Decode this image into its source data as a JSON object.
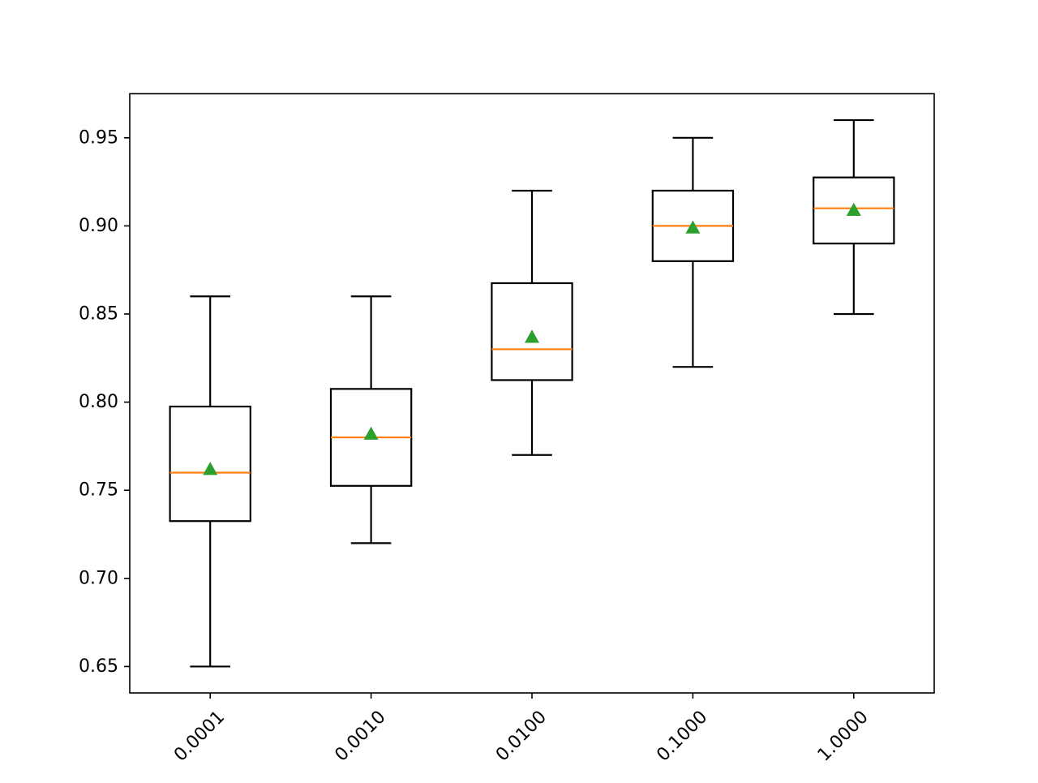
{
  "chart_data": {
    "type": "box",
    "title": "",
    "xlabel": "",
    "ylabel": "",
    "categories": [
      "0.0001",
      "0.0010",
      "0.0100",
      "0.1000",
      "1.0000"
    ],
    "boxes": [
      {
        "category": "0.0001",
        "whisker_low": 0.65,
        "q1": 0.7325,
        "median": 0.76,
        "q3": 0.7975,
        "whisker_high": 0.86,
        "mean": 0.762
      },
      {
        "category": "0.0010",
        "whisker_low": 0.72,
        "q1": 0.7525,
        "median": 0.78,
        "q3": 0.8075,
        "whisker_high": 0.86,
        "mean": 0.782
      },
      {
        "category": "0.0100",
        "whisker_low": 0.77,
        "q1": 0.8125,
        "median": 0.83,
        "q3": 0.8675,
        "whisker_high": 0.92,
        "mean": 0.837
      },
      {
        "category": "0.1000",
        "whisker_low": 0.82,
        "q1": 0.88,
        "median": 0.9,
        "q3": 0.92,
        "whisker_high": 0.95,
        "mean": 0.899
      },
      {
        "category": "1.0000",
        "whisker_low": 0.85,
        "q1": 0.89,
        "median": 0.91,
        "q3": 0.9275,
        "whisker_high": 0.96,
        "mean": 0.909
      }
    ],
    "y_ticks": [
      "0.65",
      "0.70",
      "0.75",
      "0.80",
      "0.85",
      "0.90",
      "0.95"
    ],
    "ylim": [
      0.635,
      0.975
    ],
    "grid": false,
    "legend": "none",
    "colors": {
      "box": "#000000",
      "median": "#ff7f0e",
      "mean": "#2ca02c"
    }
  }
}
